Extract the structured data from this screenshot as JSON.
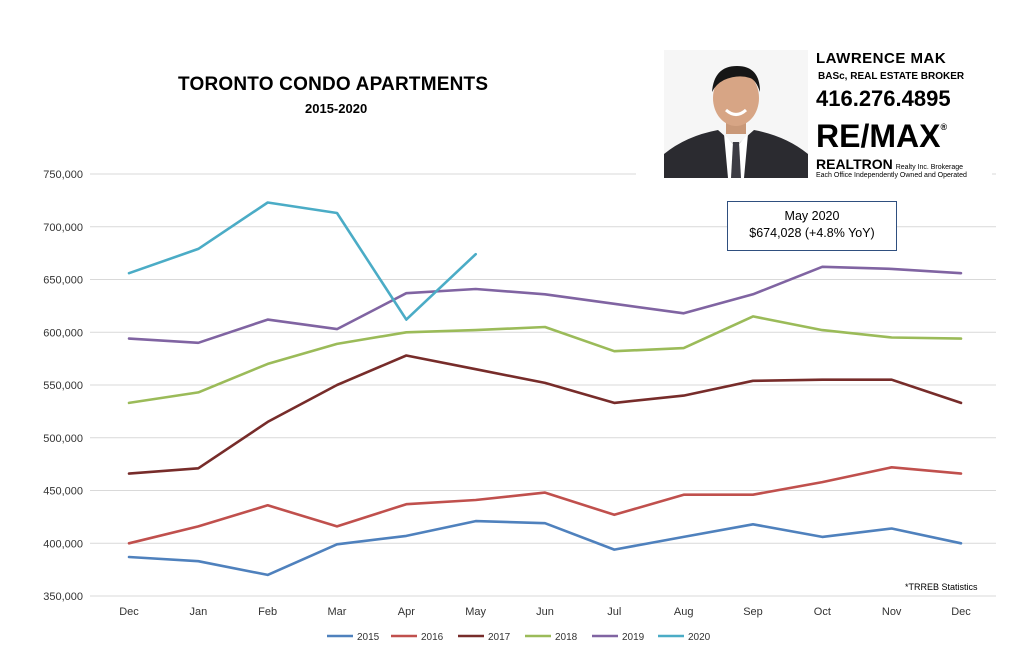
{
  "title": "TORONTO CONDO APARTMENTS",
  "subtitle": "2015-2020",
  "callout": {
    "line1": "May 2020",
    "line2": "$674,028  (+4.8% YoY)"
  },
  "source_note": "*TRREB Statistics",
  "advertisement": {
    "name": "LAWRENCE MAK",
    "credentials": "BASc, REAL ESTATE BROKER",
    "phone": "416.276.4895",
    "brand": "RE/MAX",
    "brand_mark": "®",
    "brokerage": "REALTRON",
    "brokerage_sub": "Realty Inc. Brokerage",
    "office_note": "Each Office Independently Owned and Operated"
  },
  "chart_data": {
    "type": "line",
    "title": "TORONTO CONDO APARTMENTS",
    "subtitle": "2015-2020",
    "categories": [
      "Dec",
      "Jan",
      "Feb",
      "Mar",
      "Apr",
      "May",
      "Jun",
      "Jul",
      "Aug",
      "Sep",
      "Oct",
      "Nov",
      "Dec"
    ],
    "y_ticks": [
      "350,000",
      "400,000",
      "450,000",
      "500,000",
      "550,000",
      "600,000",
      "650,000",
      "700,000",
      "750,000"
    ],
    "ylim": [
      350000,
      750000
    ],
    "grid": "horizontal",
    "legend_position": "bottom",
    "series": [
      {
        "name": "2015",
        "color": "#4f81bd",
        "values": [
          387000,
          383000,
          370000,
          399000,
          407000,
          421000,
          419000,
          394000,
          406000,
          418000,
          406000,
          414000,
          400000
        ]
      },
      {
        "name": "2016",
        "color": "#c0504d",
        "values": [
          400000,
          416000,
          436000,
          416000,
          437000,
          441000,
          448000,
          427000,
          446000,
          446000,
          458000,
          472000,
          466000
        ]
      },
      {
        "name": "2017",
        "color": "#772c2a",
        "values": [
          466000,
          471000,
          515000,
          550000,
          578000,
          565000,
          552000,
          533000,
          540000,
          554000,
          555000,
          555000,
          533000
        ]
      },
      {
        "name": "2018",
        "color": "#9bbb59",
        "values": [
          533000,
          543000,
          570000,
          589000,
          600000,
          602000,
          605000,
          582000,
          585000,
          615000,
          602000,
          595000,
          594000
        ]
      },
      {
        "name": "2019",
        "color": "#8064a2",
        "values": [
          594000,
          590000,
          612000,
          603000,
          637000,
          641000,
          636000,
          627000,
          618000,
          636000,
          662000,
          660000,
          656000
        ]
      },
      {
        "name": "2020",
        "color": "#4bacc6",
        "values": [
          656000,
          679000,
          723000,
          713000,
          612000,
          674028,
          null,
          null,
          null,
          null,
          null,
          null,
          null
        ]
      }
    ]
  }
}
